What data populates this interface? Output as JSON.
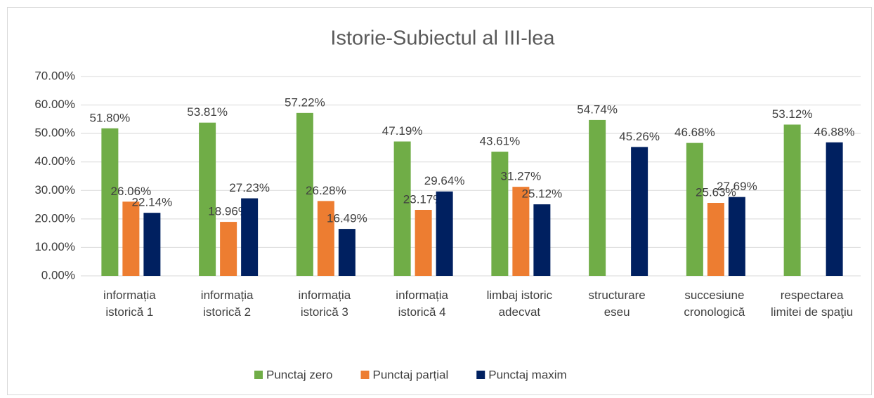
{
  "chart_data": {
    "type": "bar",
    "title": "Istorie-Subiectul al III-lea",
    "categories": [
      "informația istorică 1",
      "informația istorică 2",
      "informația istorică 3",
      "informația istorică 4",
      "limbaj istoric adecvat",
      "structurare eseu",
      "succesiune cronologică",
      "respectarea limitei de spaţiu"
    ],
    "series": [
      {
        "name": "Punctaj zero",
        "color": "#70ad47",
        "values": [
          51.8,
          53.81,
          57.22,
          47.19,
          43.61,
          54.74,
          46.68,
          53.12
        ],
        "value_labels": [
          "51.80%",
          "53.81%",
          "57.22%",
          "47.19%",
          "43.61%",
          "54.74%",
          "46.68%",
          "53.12%"
        ]
      },
      {
        "name": "Punctaj parțial",
        "color": "#ed7d31",
        "values": [
          26.06,
          18.96,
          26.28,
          23.17,
          31.27,
          null,
          25.63,
          null
        ],
        "value_labels": [
          "26.06%",
          "18.96%",
          "26.28%",
          "23.17%",
          "31.27%",
          null,
          "25.63%",
          null
        ]
      },
      {
        "name": "Punctaj maxim",
        "color": "#002060",
        "values": [
          22.14,
          27.23,
          16.49,
          29.64,
          25.12,
          45.26,
          27.69,
          46.88
        ],
        "value_labels": [
          "22.14%",
          "27.23%",
          "16.49%",
          "29.64%",
          "25.12%",
          "45.26%",
          "27.69%",
          "46.88%"
        ]
      }
    ],
    "ylim": [
      0,
      70
    ],
    "yticks": [
      {
        "value": 0,
        "label": "0.00%"
      },
      {
        "value": 10,
        "label": "10.00%"
      },
      {
        "value": 20,
        "label": "20.00%"
      },
      {
        "value": 30,
        "label": "30.00%"
      },
      {
        "value": 40,
        "label": "40.00%"
      },
      {
        "value": 50,
        "label": "50.00%"
      },
      {
        "value": 60,
        "label": "60.00%"
      },
      {
        "value": 70,
        "label": "70.00%"
      }
    ],
    "grid": true,
    "legend": "bottom"
  }
}
